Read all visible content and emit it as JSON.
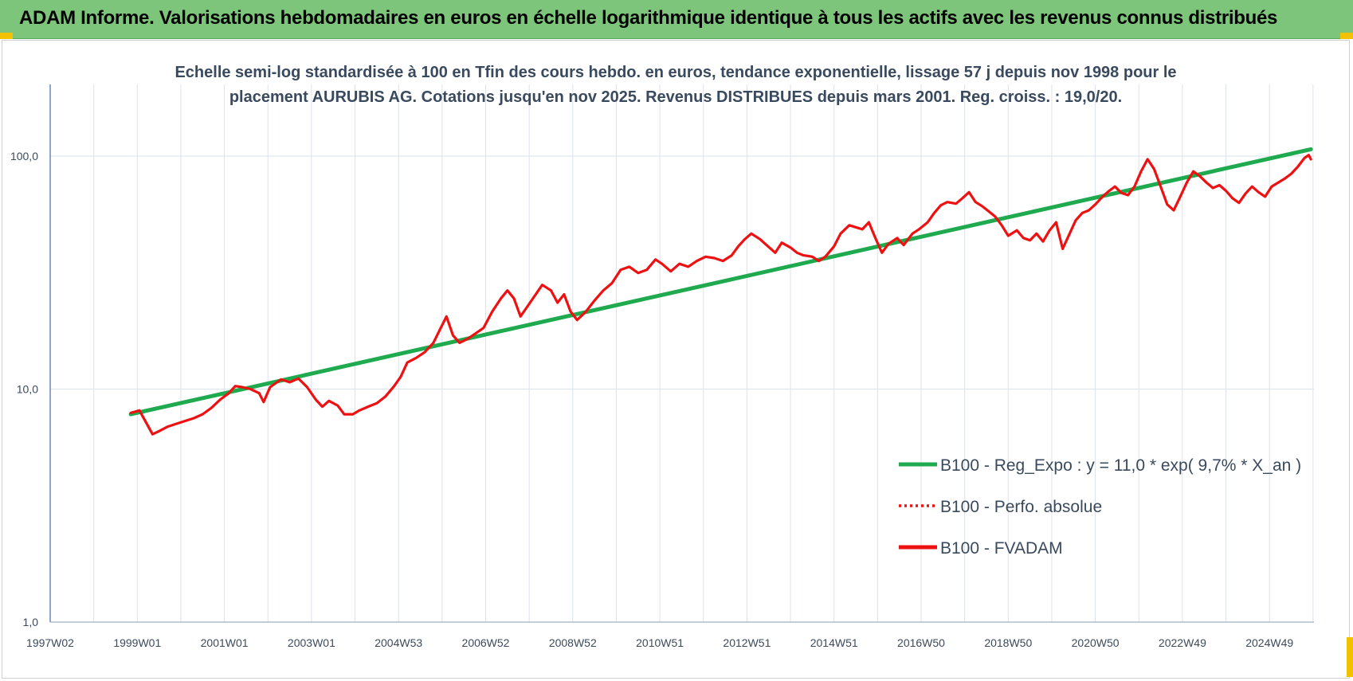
{
  "header": {
    "title": "ADAM Informe. Valorisations hebdomadaires en euros en échelle logarithmique identique à tous les actifs avec les revenus connus distribués"
  },
  "colors": {
    "header_bg": "#7dc57a",
    "regression": "#1faa4f",
    "fvadam": "#ee1111",
    "perfo": "#ee1111",
    "grid": "#dde3ea",
    "corner": "#f2c200"
  },
  "chart_data": {
    "type": "line",
    "title": "",
    "subtitle_lines": [
      "Echelle semi-log standardisée à 100 en Tfin des cours hebdo. en euros, tendance exponentielle, lissage 57 j depuis nov 1998 pour le",
      "placement AURUBIS AG. Cotations jusqu'en nov 2025. Revenus DISTRIBUES depuis mars 2001. Reg. croiss. : 19,0/20."
    ],
    "xlabel": "",
    "ylabel": "",
    "y_scale": "log",
    "ylim": [
      1,
      200
    ],
    "y_ticks": [
      {
        "value": 1,
        "label": "1,0"
      },
      {
        "value": 10,
        "label": "10,0"
      },
      {
        "value": 100,
        "label": "100,0"
      }
    ],
    "xlim": [
      1997.0,
      2026.0
    ],
    "x_ticks": [
      {
        "value": 1997.0,
        "label": "1997W02"
      },
      {
        "value": 1999.0,
        "label": "1999W01"
      },
      {
        "value": 2001.0,
        "label": "2001W01"
      },
      {
        "value": 2003.0,
        "label": "2003W01"
      },
      {
        "value": 2005.0,
        "label": "2004W53"
      },
      {
        "value": 2007.0,
        "label": "2006W52"
      },
      {
        "value": 2009.0,
        "label": "2008W52"
      },
      {
        "value": 2011.0,
        "label": "2010W51"
      },
      {
        "value": 2013.0,
        "label": "2012W51"
      },
      {
        "value": 2015.0,
        "label": "2014W51"
      },
      {
        "value": 2017.0,
        "label": "2016W50"
      },
      {
        "value": 2019.0,
        "label": "2018W50"
      },
      {
        "value": 2021.0,
        "label": "2020W50"
      },
      {
        "value": 2023.0,
        "label": "2022W49"
      },
      {
        "value": 2025.0,
        "label": "2024W49"
      }
    ],
    "grid": true,
    "legend": {
      "position": "right"
    },
    "series": [
      {
        "name": "B100 - Reg_Expo : y = 11,0 * exp( 9,7% *  X_an )",
        "color": "#1faa4f",
        "style": "solid",
        "points": [
          [
            1998.85,
            7.8
          ],
          [
            2025.95,
            107
          ]
        ]
      },
      {
        "name": "B100 - Perfo. absolue",
        "color": "#ee1111",
        "style": "dotted",
        "points": []
      },
      {
        "name": "B100 - FVADAM",
        "color": "#ee1111",
        "style": "solid",
        "points": [
          [
            1998.85,
            7.9
          ],
          [
            1999.05,
            8.1
          ],
          [
            1999.2,
            7.2
          ],
          [
            1999.35,
            6.4
          ],
          [
            1999.5,
            6.6
          ],
          [
            1999.7,
            6.9
          ],
          [
            1999.9,
            7.1
          ],
          [
            2000.1,
            7.3
          ],
          [
            2000.3,
            7.5
          ],
          [
            2000.5,
            7.8
          ],
          [
            2000.7,
            8.3
          ],
          [
            2000.9,
            9.0
          ],
          [
            2001.1,
            9.6
          ],
          [
            2001.25,
            10.3
          ],
          [
            2001.4,
            10.2
          ],
          [
            2001.6,
            10.0
          ],
          [
            2001.8,
            9.6
          ],
          [
            2001.9,
            8.8
          ],
          [
            2002.05,
            10.2
          ],
          [
            2002.3,
            11.0
          ],
          [
            2002.5,
            10.7
          ],
          [
            2002.7,
            11.1
          ],
          [
            2002.9,
            10.2
          ],
          [
            2003.1,
            9.0
          ],
          [
            2003.25,
            8.4
          ],
          [
            2003.4,
            8.9
          ],
          [
            2003.6,
            8.5
          ],
          [
            2003.75,
            7.8
          ],
          [
            2003.95,
            7.8
          ],
          [
            2004.1,
            8.1
          ],
          [
            2004.3,
            8.4
          ],
          [
            2004.5,
            8.7
          ],
          [
            2004.7,
            9.3
          ],
          [
            2004.9,
            10.3
          ],
          [
            2005.05,
            11.3
          ],
          [
            2005.2,
            13.0
          ],
          [
            2005.4,
            13.6
          ],
          [
            2005.6,
            14.4
          ],
          [
            2005.8,
            15.8
          ],
          [
            2005.95,
            18.0
          ],
          [
            2006.1,
            20.5
          ],
          [
            2006.25,
            17.0
          ],
          [
            2006.4,
            15.8
          ],
          [
            2006.6,
            16.5
          ],
          [
            2006.8,
            17.5
          ],
          [
            2006.95,
            18.3
          ],
          [
            2007.15,
            21.5
          ],
          [
            2007.35,
            24.5
          ],
          [
            2007.5,
            26.5
          ],
          [
            2007.65,
            24.5
          ],
          [
            2007.8,
            20.5
          ],
          [
            2007.95,
            22.5
          ],
          [
            2008.15,
            25.5
          ],
          [
            2008.3,
            28.0
          ],
          [
            2008.5,
            26.5
          ],
          [
            2008.65,
            23.5
          ],
          [
            2008.8,
            25.5
          ],
          [
            2008.95,
            21.5
          ],
          [
            2009.1,
            19.8
          ],
          [
            2009.3,
            21.5
          ],
          [
            2009.5,
            24.0
          ],
          [
            2009.7,
            26.5
          ],
          [
            2009.9,
            28.5
          ],
          [
            2010.1,
            32.5
          ],
          [
            2010.3,
            33.5
          ],
          [
            2010.5,
            31.5
          ],
          [
            2010.7,
            32.5
          ],
          [
            2010.9,
            36.0
          ],
          [
            2011.05,
            34.5
          ],
          [
            2011.25,
            32.0
          ],
          [
            2011.45,
            34.5
          ],
          [
            2011.65,
            33.5
          ],
          [
            2011.85,
            35.5
          ],
          [
            2012.05,
            37.0
          ],
          [
            2012.25,
            36.5
          ],
          [
            2012.45,
            35.5
          ],
          [
            2012.65,
            37.5
          ],
          [
            2012.8,
            41.0
          ],
          [
            2012.95,
            44.0
          ],
          [
            2013.1,
            46.5
          ],
          [
            2013.3,
            44.0
          ],
          [
            2013.45,
            41.5
          ],
          [
            2013.65,
            38.5
          ],
          [
            2013.8,
            42.5
          ],
          [
            2014.0,
            40.5
          ],
          [
            2014.15,
            38.5
          ],
          [
            2014.3,
            37.5
          ],
          [
            2014.5,
            37.0
          ],
          [
            2014.65,
            35.5
          ],
          [
            2014.8,
            37.0
          ],
          [
            2015.0,
            41.0
          ],
          [
            2015.15,
            46.5
          ],
          [
            2015.35,
            50.5
          ],
          [
            2015.5,
            49.5
          ],
          [
            2015.65,
            48.5
          ],
          [
            2015.8,
            52.0
          ],
          [
            2015.95,
            44.5
          ],
          [
            2016.1,
            38.5
          ],
          [
            2016.25,
            42.0
          ],
          [
            2016.45,
            44.5
          ],
          [
            2016.6,
            41.5
          ],
          [
            2016.8,
            46.5
          ],
          [
            2016.95,
            48.5
          ],
          [
            2017.15,
            52.0
          ],
          [
            2017.3,
            57.0
          ],
          [
            2017.45,
            61.5
          ],
          [
            2017.6,
            63.5
          ],
          [
            2017.8,
            62.5
          ],
          [
            2017.95,
            66.0
          ],
          [
            2018.1,
            70.0
          ],
          [
            2018.25,
            63.5
          ],
          [
            2018.4,
            61.0
          ],
          [
            2018.55,
            58.0
          ],
          [
            2018.7,
            55.0
          ],
          [
            2018.85,
            50.5
          ],
          [
            2019.0,
            45.5
          ],
          [
            2019.2,
            48.0
          ],
          [
            2019.35,
            44.5
          ],
          [
            2019.5,
            43.5
          ],
          [
            2019.65,
            46.5
          ],
          [
            2019.8,
            43.0
          ],
          [
            2019.95,
            48.0
          ],
          [
            2020.1,
            52.0
          ],
          [
            2020.25,
            40.0
          ],
          [
            2020.4,
            46.0
          ],
          [
            2020.55,
            53.0
          ],
          [
            2020.7,
            57.0
          ],
          [
            2020.85,
            58.5
          ],
          [
            2021.0,
            62.0
          ],
          [
            2021.15,
            66.5
          ],
          [
            2021.3,
            70.5
          ],
          [
            2021.45,
            74.0
          ],
          [
            2021.6,
            69.5
          ],
          [
            2021.75,
            68.0
          ],
          [
            2021.9,
            74.0
          ],
          [
            2022.05,
            86.0
          ],
          [
            2022.2,
            97.0
          ],
          [
            2022.35,
            88.0
          ],
          [
            2022.5,
            74.0
          ],
          [
            2022.65,
            62.0
          ],
          [
            2022.8,
            58.5
          ],
          [
            2022.95,
            67.0
          ],
          [
            2023.1,
            77.0
          ],
          [
            2023.25,
            86.0
          ],
          [
            2023.4,
            82.0
          ],
          [
            2023.55,
            77.0
          ],
          [
            2023.7,
            73.0
          ],
          [
            2023.85,
            75.0
          ],
          [
            2024.0,
            71.0
          ],
          [
            2024.15,
            66.0
          ],
          [
            2024.3,
            63.0
          ],
          [
            2024.45,
            69.0
          ],
          [
            2024.6,
            74.0
          ],
          [
            2024.75,
            70.0
          ],
          [
            2024.9,
            67.0
          ],
          [
            2025.05,
            74.0
          ],
          [
            2025.2,
            77.0
          ],
          [
            2025.35,
            80.0
          ],
          [
            2025.5,
            84.0
          ],
          [
            2025.65,
            90.0
          ],
          [
            2025.8,
            98.0
          ],
          [
            2025.9,
            101.0
          ],
          [
            2025.95,
            97.0
          ]
        ]
      }
    ]
  }
}
